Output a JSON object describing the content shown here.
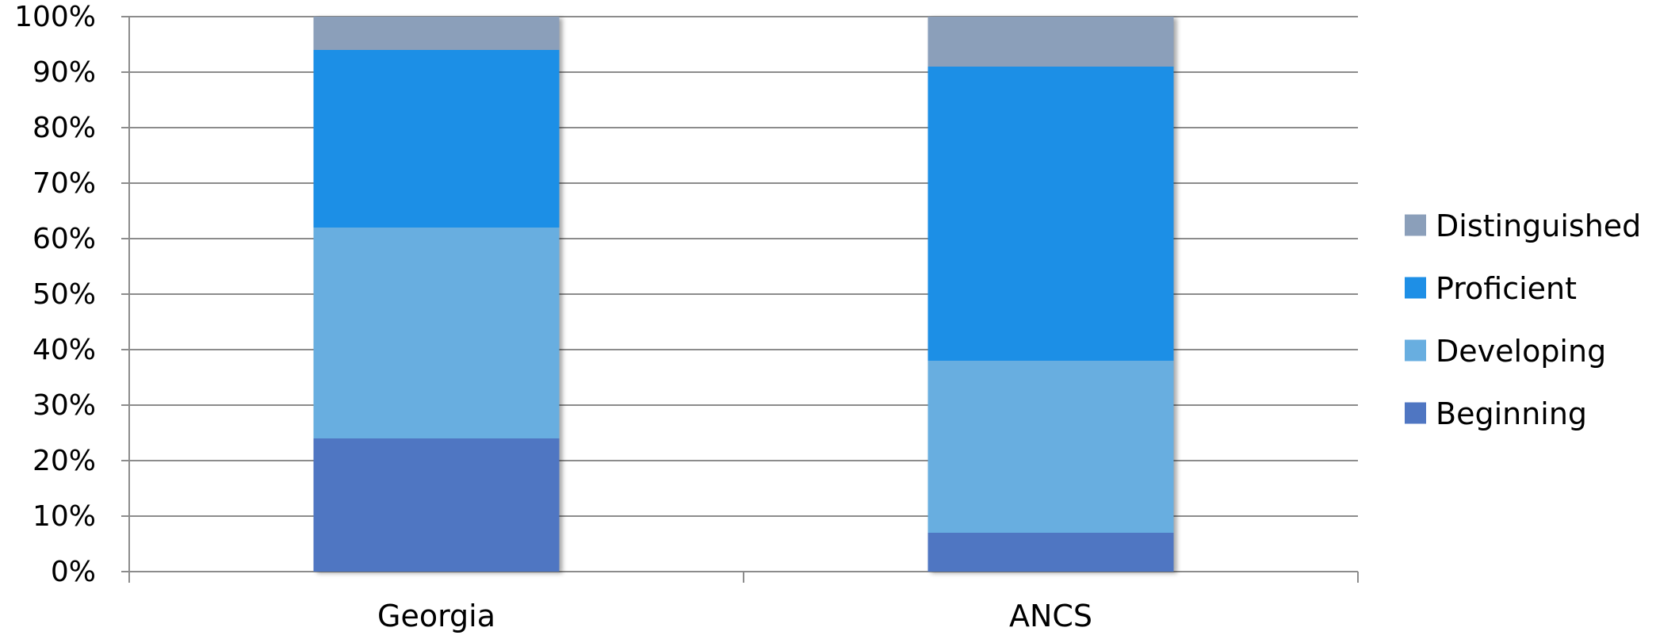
{
  "chart_data": {
    "type": "bar",
    "stacked": true,
    "percent": true,
    "categories": [
      "Georgia",
      "ANCS"
    ],
    "series": [
      {
        "name": "Beginning",
        "values": [
          24,
          7
        ],
        "color": "#4f76c2"
      },
      {
        "name": "Developing",
        "values": [
          38,
          31
        ],
        "color": "#68aee0"
      },
      {
        "name": "Proficient",
        "values": [
          32,
          53
        ],
        "color": "#1e8fe6"
      },
      {
        "name": "Distinguished",
        "values": [
          6,
          9
        ],
        "color": "#8b9fba"
      }
    ],
    "ylim": [
      0,
      100
    ],
    "y_ticks": [
      "0%",
      "10%",
      "20%",
      "30%",
      "40%",
      "50%",
      "60%",
      "70%",
      "80%",
      "90%",
      "100%"
    ],
    "grid": true,
    "legend_position": "right",
    "legend_order": [
      "Distinguished",
      "Proficient",
      "Developing",
      "Beginning"
    ],
    "title": "",
    "xlabel": "",
    "ylabel": ""
  }
}
